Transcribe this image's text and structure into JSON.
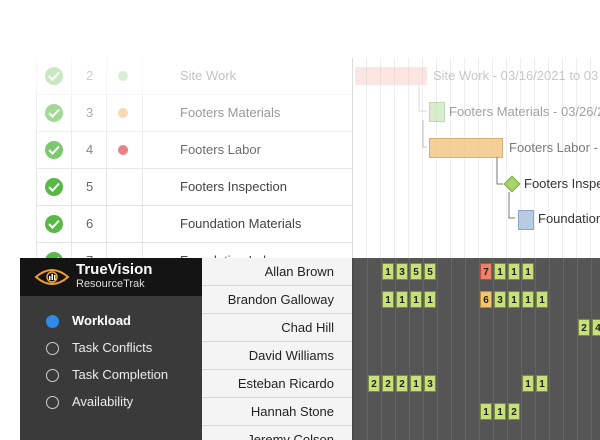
{
  "tasks": [
    {
      "num": "2",
      "dot_color": "#8fd07f",
      "name": "Site Work"
    },
    {
      "num": "3",
      "dot_color": "#f6b97a",
      "name": "Footers Materials"
    },
    {
      "num": "4",
      "dot_color": "#e06060",
      "name": "Footers Labor"
    },
    {
      "num": "5",
      "dot_color": "",
      "name": "Footers Inspection"
    },
    {
      "num": "6",
      "dot_color": "",
      "name": "Foundation Materials"
    },
    {
      "num": "7",
      "dot_color": "",
      "name": "Foundation Labor"
    }
  ],
  "timeline_labels": {
    "site_work": "Site Work - 03/16/2021 to 03",
    "footers_materials": "Footers Materials - 03/26/2",
    "footers_labor": "Footers Labor - 03/",
    "footers_inspection": "Footers Inspe",
    "foundation": "Foundation"
  },
  "brand": {
    "title": "TrueVision",
    "subtitle": "ResourceTrak"
  },
  "menu": [
    {
      "label": "Workload",
      "selected": true
    },
    {
      "label": "Task Conflicts",
      "selected": false
    },
    {
      "label": "Task Completion",
      "selected": false
    },
    {
      "label": "Availability",
      "selected": false
    }
  ],
  "resources": [
    {
      "name": "Allan Brown",
      "cells": [
        {
          "col": 2,
          "v": "1",
          "c": "g"
        },
        {
          "col": 3,
          "v": "3",
          "c": "g"
        },
        {
          "col": 4,
          "v": "5",
          "c": "g"
        },
        {
          "col": 5,
          "v": "5",
          "c": "g"
        },
        {
          "col": 9,
          "v": "7",
          "c": "r"
        },
        {
          "col": 10,
          "v": "1",
          "c": "g"
        },
        {
          "col": 11,
          "v": "1",
          "c": "g"
        },
        {
          "col": 12,
          "v": "1",
          "c": "g"
        }
      ]
    },
    {
      "name": "Brandon Galloway",
      "cells": [
        {
          "col": 2,
          "v": "1",
          "c": "g"
        },
        {
          "col": 3,
          "v": "1",
          "c": "g"
        },
        {
          "col": 4,
          "v": "1",
          "c": "g"
        },
        {
          "col": 5,
          "v": "1",
          "c": "g"
        },
        {
          "col": 9,
          "v": "6",
          "c": "o"
        },
        {
          "col": 10,
          "v": "3",
          "c": "g"
        },
        {
          "col": 11,
          "v": "1",
          "c": "g"
        },
        {
          "col": 12,
          "v": "1",
          "c": "g"
        },
        {
          "col": 13,
          "v": "1",
          "c": "g"
        }
      ]
    },
    {
      "name": "Chad Hill",
      "cells": [
        {
          "col": 16,
          "v": "2",
          "c": "g"
        },
        {
          "col": 17,
          "v": "4",
          "c": "g"
        }
      ]
    },
    {
      "name": "David Williams",
      "cells": []
    },
    {
      "name": "Esteban Ricardo",
      "cells": [
        {
          "col": 1,
          "v": "2",
          "c": "g"
        },
        {
          "col": 2,
          "v": "2",
          "c": "g"
        },
        {
          "col": 3,
          "v": "2",
          "c": "g"
        },
        {
          "col": 4,
          "v": "1",
          "c": "g"
        },
        {
          "col": 5,
          "v": "3",
          "c": "g"
        },
        {
          "col": 12,
          "v": "1",
          "c": "g"
        },
        {
          "col": 13,
          "v": "1",
          "c": "g"
        }
      ]
    },
    {
      "name": "Hannah Stone",
      "cells": [
        {
          "col": 9,
          "v": "1",
          "c": "g"
        },
        {
          "col": 10,
          "v": "1",
          "c": "g"
        },
        {
          "col": 11,
          "v": "2",
          "c": "g"
        }
      ]
    },
    {
      "name": "Jeremy Colson",
      "cells": []
    }
  ]
}
